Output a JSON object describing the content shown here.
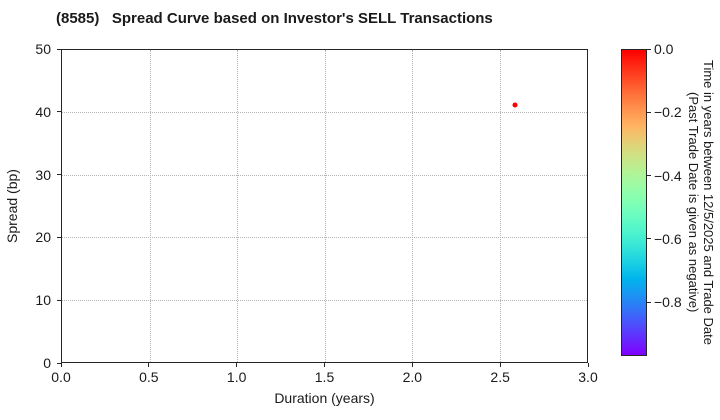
{
  "chart_data": {
    "type": "scatter",
    "title": "(8585)   Spread Curve based on Investor's SELL Transactions",
    "xlabel": "Duration (years)",
    "ylabel": "Spread (bp)",
    "xlim": [
      0.0,
      3.0
    ],
    "ylim": [
      0,
      50
    ],
    "xticks": [
      0.0,
      0.5,
      1.0,
      1.5,
      2.0,
      2.5,
      3.0
    ],
    "xtick_labels": [
      "0.0",
      "0.5",
      "1.0",
      "1.5",
      "2.0",
      "2.5",
      "3.0"
    ],
    "yticks": [
      0,
      10,
      20,
      30,
      40,
      50
    ],
    "ytick_labels": [
      "0",
      "10",
      "20",
      "30",
      "40",
      "50"
    ],
    "grid": true,
    "grid_style": "dotted",
    "legend": "none",
    "points": [
      {
        "x": 2.59,
        "y": 41.2,
        "color_value": 0.0,
        "color": "#ff0000"
      }
    ],
    "colorbar": {
      "colormap": "rainbow",
      "vmax": 0.0,
      "vmin": -0.97,
      "ticks": [
        0.0,
        -0.2,
        -0.4,
        -0.6,
        -0.8
      ],
      "tick_labels": [
        "0.0",
        "−0.2",
        "−0.4",
        "−0.6",
        "−0.8"
      ],
      "label_line1": "Time in years between 12/5/2025 and Trade Date",
      "label_line2": "(Past Trade Date is given as negative)"
    }
  },
  "theme": {
    "background": "#ffffff",
    "text_color": "#1a1a1a",
    "spine_color": "#262626",
    "grid_color": "#b3b3b3",
    "point_color": "#ff0000"
  }
}
